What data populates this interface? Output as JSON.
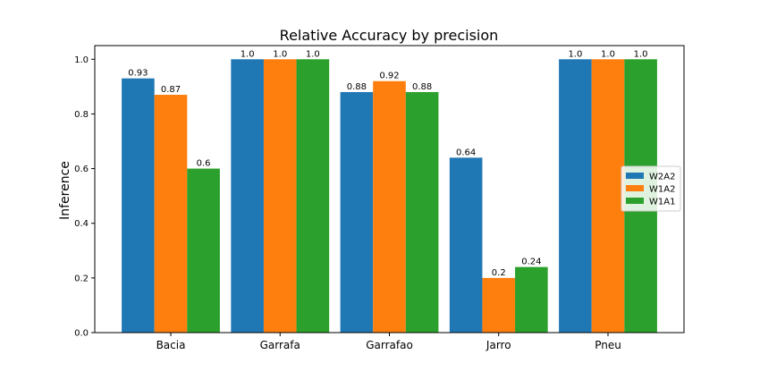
{
  "chart_data": {
    "type": "bar",
    "title": "Relative Accuracy by precision",
    "xlabel": "",
    "ylabel": "Inference",
    "categories": [
      "Bacia",
      "Garrafa",
      "Garrafao",
      "Jarro",
      "Pneu"
    ],
    "series": [
      {
        "name": "W2A2",
        "color": "#1f77b4",
        "values": [
          0.93,
          1.0,
          0.88,
          0.64,
          1.0
        ],
        "labels": [
          "0.93",
          "1.0",
          "0.88",
          "0.64",
          "1.0"
        ]
      },
      {
        "name": "W1A2",
        "color": "#ff7f0e",
        "values": [
          0.87,
          1.0,
          0.92,
          0.2,
          1.0
        ],
        "labels": [
          "0.87",
          "1.0",
          "0.92",
          "0.2",
          "1.0"
        ]
      },
      {
        "name": "W1A1",
        "color": "#2ca02c",
        "values": [
          0.6,
          1.0,
          0.88,
          0.24,
          1.0
        ],
        "labels": [
          "0.6",
          "1.0",
          "0.88",
          "0.24",
          "1.0"
        ]
      }
    ],
    "ylim": [
      0,
      1.05
    ],
    "yticks": [
      "0.0",
      "0.2",
      "0.4",
      "0.6",
      "0.8",
      "1.0"
    ],
    "grid": false,
    "legend_position": "center-right"
  }
}
